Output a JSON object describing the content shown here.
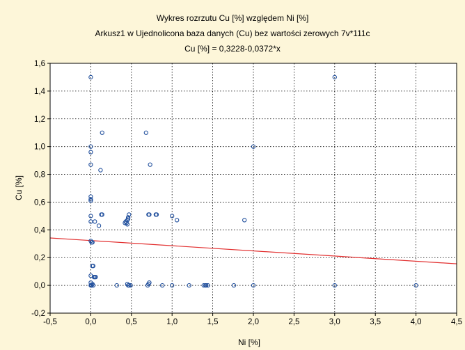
{
  "chart_data": {
    "type": "scatter",
    "title": "Wykres rozrzutu   Cu [%] względem Ni [%]",
    "subtitle": "Arkusz1 w Ujednolicona baza danych (Cu) bez wartości zerowych 7v*111c",
    "equation": "Cu [%] = 0,3228-0,0372*x",
    "xlabel": "Ni [%]",
    "ylabel": "Cu [%]",
    "xlim": [
      -0.5,
      4.5
    ],
    "ylim": [
      -0.2,
      1.6
    ],
    "xticks": [
      "-0,5",
      "0,0",
      "0,5",
      "1,0",
      "1,5",
      "2,0",
      "2,5",
      "3,0",
      "3,5",
      "4,0",
      "4,5"
    ],
    "yticks": [
      "-0,2",
      "0,0",
      "0,2",
      "0,4",
      "0,6",
      "0,8",
      "1,0",
      "1,2",
      "1,4",
      "1,6"
    ],
    "grid": true,
    "regression": {
      "intercept": 0.3228,
      "slope": -0.0372
    },
    "colors": {
      "points": "#1f4e9c",
      "line": "#e23030",
      "grid": "#000000"
    },
    "points": [
      [
        0.0,
        1.5
      ],
      [
        3.0,
        1.5
      ],
      [
        0.14,
        1.1
      ],
      [
        0.68,
        1.1
      ],
      [
        0.0,
        1.0
      ],
      [
        2.0,
        1.0
      ],
      [
        0.0,
        0.96
      ],
      [
        0.0,
        0.87
      ],
      [
        0.73,
        0.87
      ],
      [
        0.12,
        0.83
      ],
      [
        0.0,
        0.64
      ],
      [
        0.0,
        0.62
      ],
      [
        0.0,
        0.61
      ],
      [
        0.13,
        0.51
      ],
      [
        0.14,
        0.51
      ],
      [
        0.47,
        0.51
      ],
      [
        0.71,
        0.51
      ],
      [
        0.72,
        0.51
      ],
      [
        0.8,
        0.51
      ],
      [
        0.81,
        0.51
      ],
      [
        0.0,
        0.5
      ],
      [
        0.46,
        0.49
      ],
      [
        1.0,
        0.5
      ],
      [
        0.46,
        0.48
      ],
      [
        0.45,
        0.47
      ],
      [
        1.06,
        0.47
      ],
      [
        1.89,
        0.47
      ],
      [
        0.0,
        0.46
      ],
      [
        0.05,
        0.46
      ],
      [
        0.43,
        0.46
      ],
      [
        0.44,
        0.45
      ],
      [
        0.42,
        0.45
      ],
      [
        0.45,
        0.44
      ],
      [
        0.1,
        0.43
      ],
      [
        0.0,
        0.32
      ],
      [
        0.02,
        0.31
      ],
      [
        0.01,
        0.31
      ],
      [
        0.02,
        0.14
      ],
      [
        0.03,
        0.14
      ],
      [
        0.0,
        0.07
      ],
      [
        0.05,
        0.06
      ],
      [
        0.06,
        0.06
      ],
      [
        0.04,
        0.06
      ],
      [
        0.0,
        0.0
      ],
      [
        0.01,
        0.0
      ],
      [
        0.02,
        0.01
      ],
      [
        0.0,
        0.02
      ],
      [
        0.01,
        0.0
      ],
      [
        0.03,
        0.0
      ],
      [
        0.32,
        0.0
      ],
      [
        0.45,
        0.01
      ],
      [
        0.46,
        0.0
      ],
      [
        0.47,
        0.0
      ],
      [
        0.49,
        0.0
      ],
      [
        0.7,
        0.0
      ],
      [
        0.71,
        0.01
      ],
      [
        0.72,
        0.02
      ],
      [
        0.88,
        0.0
      ],
      [
        1.0,
        0.0
      ],
      [
        1.21,
        0.0
      ],
      [
        1.39,
        0.0
      ],
      [
        1.41,
        0.0
      ],
      [
        1.42,
        0.0
      ],
      [
        1.44,
        0.0
      ],
      [
        1.76,
        0.0
      ],
      [
        2.0,
        0.0
      ],
      [
        3.0,
        0.0
      ],
      [
        4.0,
        0.0
      ]
    ]
  }
}
